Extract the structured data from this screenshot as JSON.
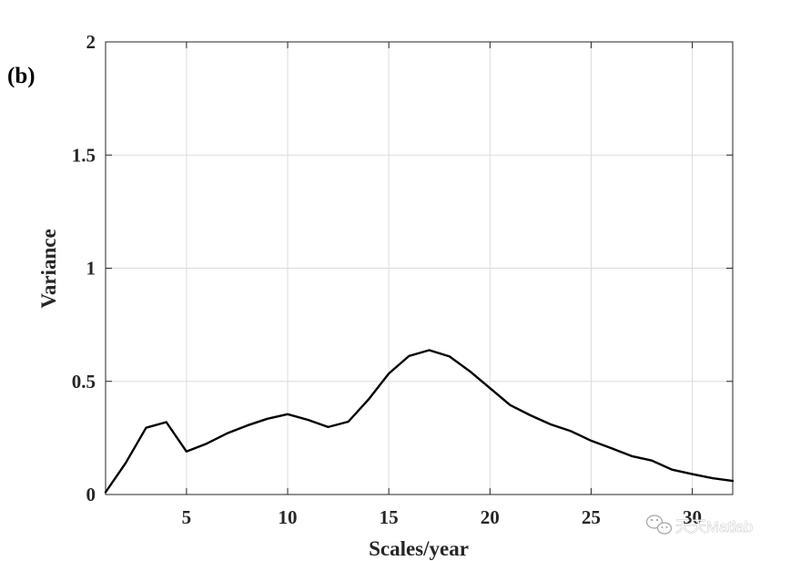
{
  "panel_label": "(b)",
  "watermark": {
    "text": "天天Matlab",
    "icon": "wechat-icon"
  },
  "colors": {
    "line": "#000000",
    "grid": "#dcdcdc",
    "axis": "#262626",
    "background": "#ffffff"
  },
  "chart_data": {
    "type": "line",
    "title": "",
    "xlabel": "Scales/year",
    "ylabel": "Variance",
    "xlim": [
      1,
      32
    ],
    "ylim": [
      0,
      2
    ],
    "xticks": [
      5,
      10,
      15,
      20,
      25,
      30
    ],
    "yticks": [
      0,
      0.5,
      1,
      1.5,
      2
    ],
    "xtick_labels": [
      "5",
      "10",
      "15",
      "20",
      "25",
      "30"
    ],
    "ytick_labels": [
      "0",
      "0.5",
      "1",
      "1.5",
      "2"
    ],
    "grid": true,
    "legend": "none",
    "series": [
      {
        "x": [
          1,
          2,
          3,
          4,
          5,
          6,
          7,
          8,
          9,
          10,
          11,
          12,
          13,
          14,
          15,
          16,
          17,
          18,
          19,
          20,
          21,
          22,
          23,
          24,
          25,
          26,
          27,
          28,
          29,
          30,
          31,
          32
        ],
        "values": [
          0.01,
          0.14,
          0.295,
          0.32,
          0.19,
          0.225,
          0.27,
          0.305,
          0.335,
          0.355,
          0.33,
          0.298,
          0.322,
          0.42,
          0.535,
          0.612,
          0.638,
          0.61,
          0.545,
          0.47,
          0.395,
          0.35,
          0.31,
          0.28,
          0.238,
          0.205,
          0.17,
          0.15,
          0.11,
          0.09,
          0.072,
          0.06
        ]
      }
    ]
  }
}
